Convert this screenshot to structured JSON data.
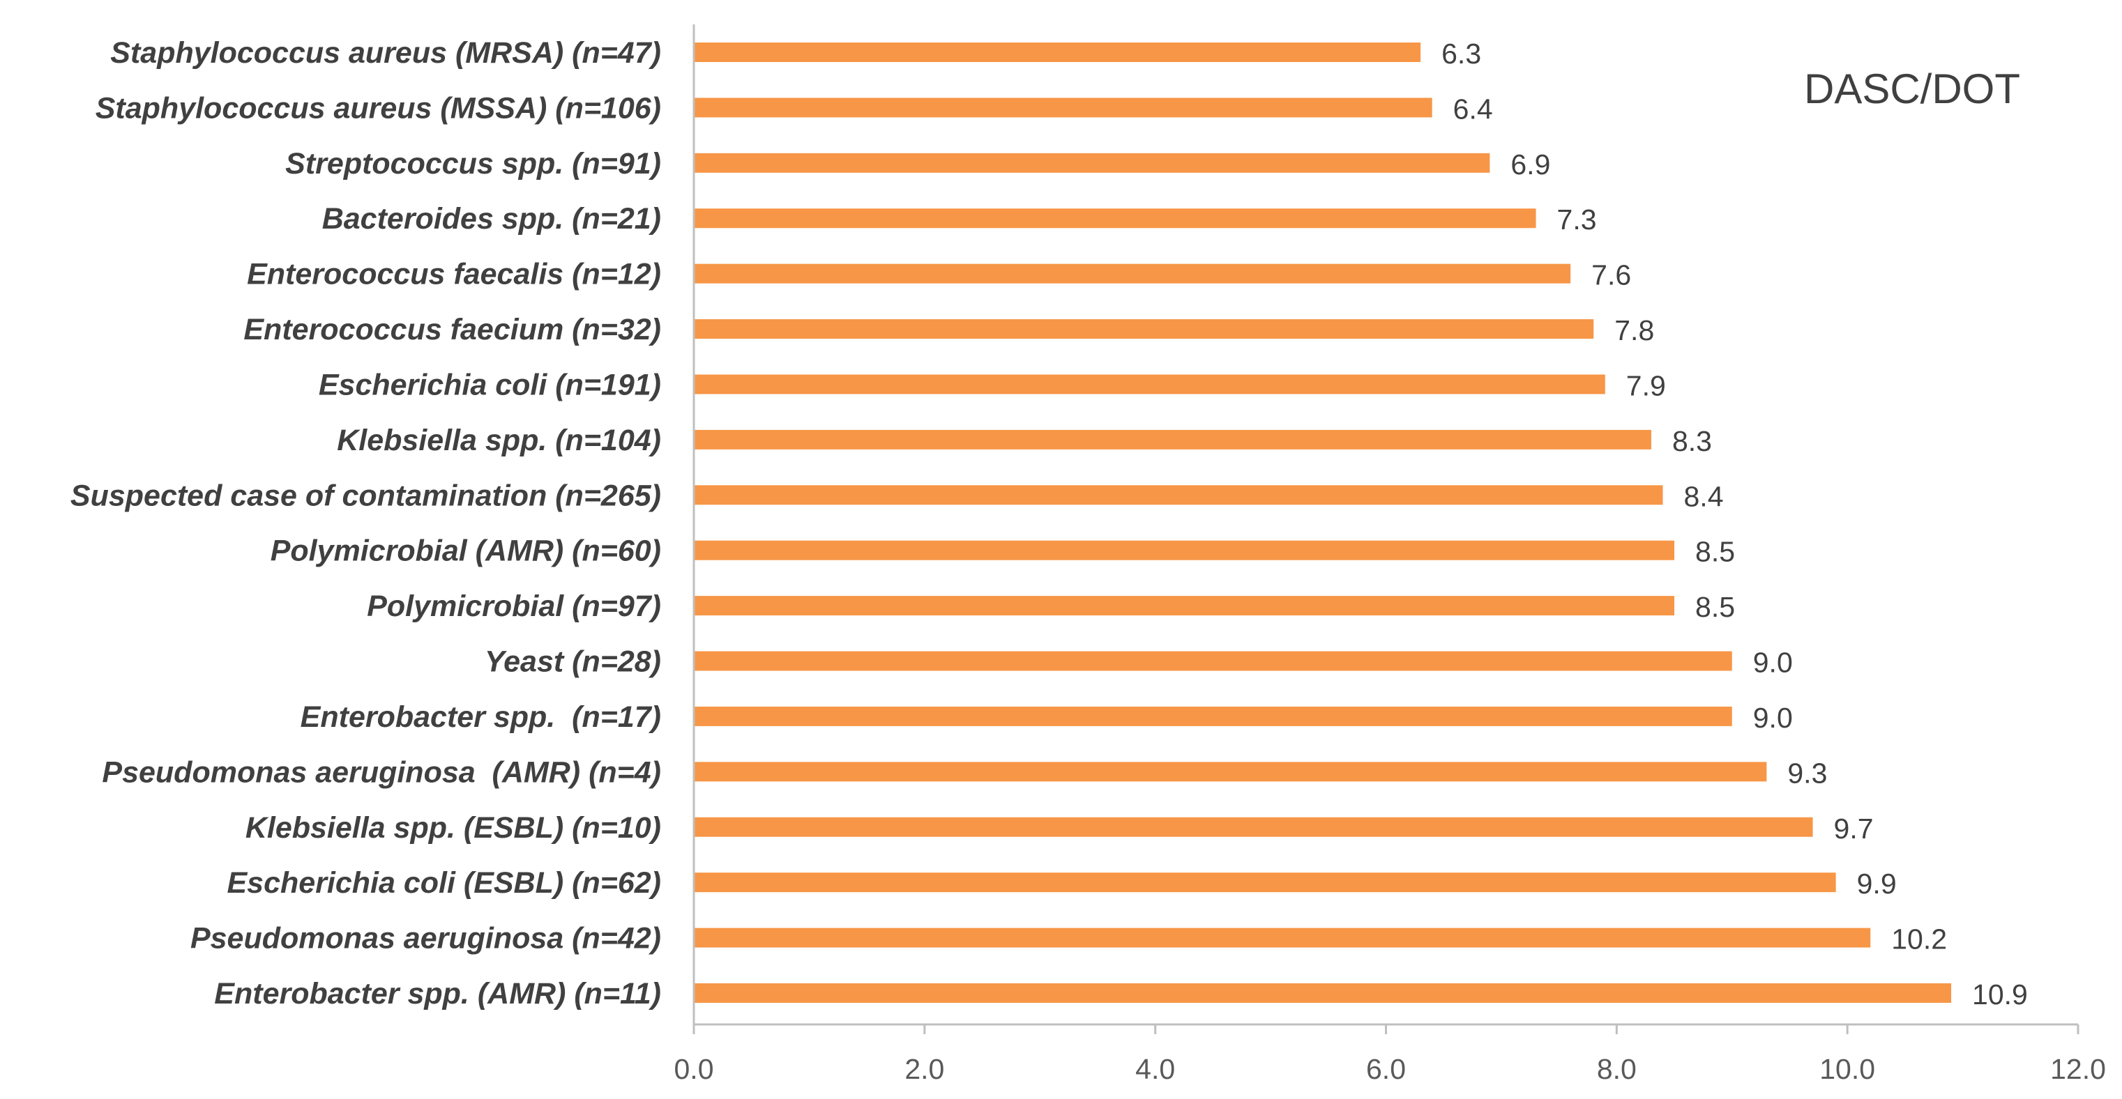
{
  "chart_data": {
    "type": "bar",
    "orientation": "horizontal",
    "title": "DASC/DOT",
    "xlabel": "",
    "ylabel": "",
    "xlim": [
      0,
      12
    ],
    "x_ticks": [
      "0.0",
      "2.0",
      "4.0",
      "6.0",
      "8.0",
      "10.0",
      "12.0"
    ],
    "grid": false,
    "bar_color": "#F79646",
    "categories": [
      "Staphylococcus aureus (MRSA) (n=47)",
      "Staphylococcus aureus (MSSA) (n=106)",
      "Streptococcus spp. (n=91)",
      "Bacteroides spp. (n=21)",
      "Enterococcus faecalis (n=12)",
      "Enterococcus faecium (n=32)",
      "Escherichia coli (n=191)",
      "Klebsiella spp. (n=104)",
      "Suspected case of contamination (n=265)",
      "Polymicrobial (AMR) (n=60)",
      "Polymicrobial (n=97)",
      "Yeast (n=28)",
      "Enterobacter spp.  (n=17)",
      "Pseudomonas aeruginosa  (AMR) (n=4)",
      "Klebsiella spp. (ESBL) (n=10)",
      "Escherichia coli (ESBL) (n=62)",
      "Pseudomonas aeruginosa (n=42)",
      "Enterobacter spp. (AMR) (n=11)"
    ],
    "values": [
      6.3,
      6.4,
      6.9,
      7.3,
      7.6,
      7.8,
      7.9,
      8.3,
      8.4,
      8.5,
      8.5,
      9.0,
      9.0,
      9.3,
      9.7,
      9.9,
      10.2,
      10.9
    ],
    "value_labels": [
      "6.3",
      "6.4",
      "6.9",
      "7.3",
      "7.6",
      "7.8",
      "7.9",
      "8.3",
      "8.4",
      "8.5",
      "8.5",
      "9.0",
      "9.0",
      "9.3",
      "9.7",
      "9.9",
      "10.2",
      "10.9"
    ]
  }
}
